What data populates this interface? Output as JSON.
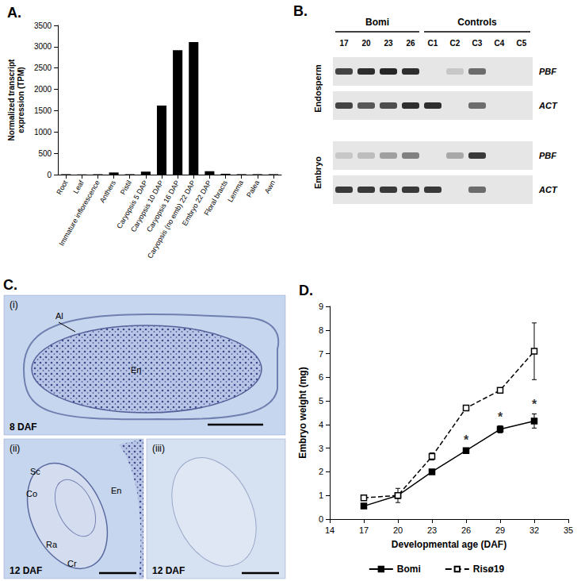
{
  "chart_data": [
    {
      "type": "bar",
      "title": "A.",
      "y_label": "Normalized transcript expression (TPM)",
      "categories": [
        "Root",
        "Leaf",
        "Immature inflorescence",
        "Anthers",
        "Pistil",
        "Caryopsis 5 DAP",
        "Caryopsis 10 DAP",
        "Caryopsis 16 DAP",
        "Caryopsis (no emb) 22 DAP",
        "Embryo 22 DAP",
        "Floral bracts",
        "Lemma",
        "Palea",
        "Awn"
      ],
      "values": [
        10,
        5,
        10,
        50,
        10,
        70,
        1620,
        2920,
        3110,
        80,
        20,
        10,
        10,
        10
      ],
      "color": "#000000",
      "ylim": [
        0,
        3500
      ],
      "yticks": [
        0,
        500,
        1000,
        1500,
        2000,
        2500,
        3000,
        3500
      ],
      "grid": false
    },
    {
      "type": "line",
      "title": "D.",
      "x_label": "Developmental age (DAF)",
      "y_label": "Embryo weight (mg)",
      "x": [
        17,
        20,
        23,
        26,
        29,
        32
      ],
      "series": [
        {
          "name": "Bomi",
          "color": "#000000",
          "marker": "square",
          "line_style": "solid",
          "values": [
            0.55,
            1.0,
            2.0,
            2.9,
            3.8,
            4.15
          ],
          "errors": [
            0.05,
            0.1,
            0.1,
            0.05,
            0.15,
            0.3
          ]
        },
        {
          "name": "Risø19",
          "color": "#000000",
          "marker": "open square",
          "line_style": "dashed",
          "values": [
            0.9,
            1.0,
            2.65,
            4.7,
            5.45,
            7.1
          ],
          "errors": [
            0.1,
            0.3,
            0.15,
            0.05,
            0.1,
            1.2
          ]
        }
      ],
      "annotations": [
        {
          "x": 26,
          "y": 3.35,
          "text": "*"
        },
        {
          "x": 29,
          "y": 4.3,
          "text": "*"
        },
        {
          "x": 32,
          "y": 4.85,
          "text": "*"
        }
      ],
      "xlim": [
        14,
        35
      ],
      "xticks": [
        14,
        17,
        20,
        23,
        26,
        29,
        32,
        35
      ],
      "ylim": [
        0,
        9
      ],
      "yticks": [
        0,
        1,
        2,
        3,
        4,
        5,
        6,
        7,
        8,
        9
      ],
      "grid": false,
      "legend": "bottom"
    }
  ],
  "gel": {
    "title": "B.",
    "groups": [
      {
        "label": "Bomi",
        "lanes": [
          "17",
          "20",
          "23",
          "26"
        ]
      },
      {
        "label": "Controls",
        "lanes": [
          "C1",
          "C2",
          "C3",
          "C4",
          "C5"
        ]
      }
    ],
    "rows": [
      {
        "tissue": "Endosperm",
        "gene": "PBF",
        "bands": [
          0.8,
          0.9,
          0.95,
          0.9,
          0,
          0.15,
          0.6,
          0,
          0
        ]
      },
      {
        "tissue": "Endosperm",
        "gene": "ACT",
        "bands": [
          0.8,
          0.7,
          0.75,
          0.9,
          0.9,
          0,
          0.6,
          0,
          0
        ]
      },
      {
        "tissue": "Embryo",
        "gene": "PBF",
        "bands": [
          0.15,
          0.2,
          0.35,
          0.5,
          0,
          0.3,
          0.85,
          0,
          0
        ]
      },
      {
        "tissue": "Embryo",
        "gene": "ACT",
        "bands": [
          0.85,
          0.85,
          0.85,
          0.85,
          0.85,
          0,
          0.6,
          0,
          0
        ]
      }
    ]
  },
  "micrographs": {
    "title": "C.",
    "images": [
      {
        "tag": "(i)",
        "age": "8 DAF",
        "labels": [
          "Al",
          "En"
        ]
      },
      {
        "tag": "(ii)",
        "age": "12 DAF",
        "labels": [
          "Sc",
          "Co",
          "Ra",
          "Cr",
          "En"
        ]
      },
      {
        "tag": "(iii)",
        "age": "12 DAF",
        "labels": []
      }
    ]
  }
}
